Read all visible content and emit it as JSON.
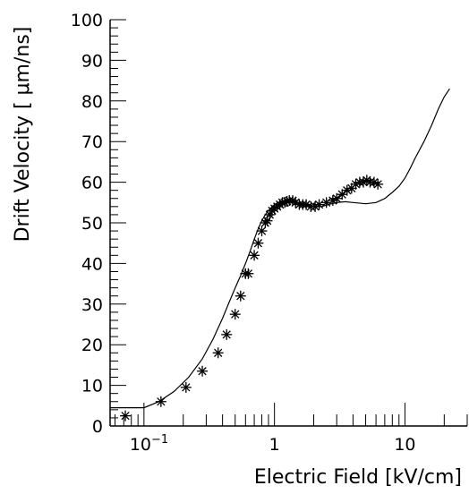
{
  "chart_data": {
    "type": "scatter",
    "title": "",
    "xlabel": "Electric Field [kV/cm]",
    "ylabel": "Drift Velocity [  μm/ns]",
    "xscale": "log",
    "xlim": [
      0.055,
      30
    ],
    "ylim": [
      0,
      100
    ],
    "x_ticks": [
      {
        "value": 0.1,
        "label": "10",
        "exp": "−1"
      },
      {
        "value": 1,
        "label": "1",
        "exp": ""
      },
      {
        "value": 10,
        "label": "10",
        "exp": ""
      }
    ],
    "y_ticks": [
      0,
      10,
      20,
      30,
      40,
      50,
      60,
      70,
      80,
      90,
      100
    ],
    "grid": false,
    "legend": "none",
    "colors": {
      "line": "#000000",
      "marker": "#000000"
    },
    "series": [
      {
        "style": "line",
        "x": [
          0.055,
          0.1,
          0.13,
          0.17,
          0.22,
          0.28,
          0.34,
          0.4,
          0.45,
          0.5,
          0.55,
          0.6,
          0.65,
          0.7,
          0.75,
          0.8,
          0.85,
          0.9,
          0.95,
          1.0,
          1.1,
          1.2,
          1.3,
          1.4,
          1.6,
          1.8,
          2.0,
          2.3,
          2.6,
          3.0,
          3.5,
          4.0,
          5.0,
          6.0,
          7.0,
          8.0,
          9.0,
          10,
          11,
          12,
          14,
          16,
          18,
          20,
          22
        ],
        "y": [
          4.5,
          4.5,
          6.0,
          8.5,
          12.0,
          16.5,
          21.5,
          26.5,
          30.5,
          34.0,
          37.0,
          40.0,
          43.0,
          46.0,
          48.5,
          50.5,
          52.0,
          53.0,
          53.8,
          54.5,
          55.2,
          55.5,
          55.5,
          55.3,
          54.7,
          54.3,
          54.0,
          54.0,
          54.5,
          55.0,
          55.2,
          55.0,
          54.7,
          55.0,
          56.0,
          57.5,
          59.0,
          61.0,
          63.5,
          66.0,
          70.0,
          74.0,
          78.0,
          81.0,
          83.0
        ]
      },
      {
        "style": "markers",
        "marker": "asterisk",
        "x": [
          0.072,
          0.135,
          0.21,
          0.28,
          0.37,
          0.43,
          0.5,
          0.55,
          0.6,
          0.63,
          0.7,
          0.75,
          0.8,
          0.85,
          0.88,
          0.92,
          0.96,
          1.0,
          1.05,
          1.1,
          1.15,
          1.2,
          1.25,
          1.3,
          1.38,
          1.45,
          1.55,
          1.65,
          1.75,
          1.9,
          2.05,
          2.2,
          2.5,
          2.8,
          3.0,
          3.3,
          3.6,
          3.9,
          4.2,
          4.5,
          4.8,
          5.1,
          5.4,
          5.8,
          6.2
        ],
        "y": [
          2.5,
          6.0,
          9.5,
          13.5,
          18.0,
          22.5,
          27.5,
          32.0,
          37.5,
          37.5,
          42.0,
          45.0,
          48.0,
          50.0,
          50.5,
          52.0,
          53.0,
          53.5,
          54.0,
          54.5,
          55.0,
          55.0,
          55.3,
          55.5,
          55.5,
          55.0,
          54.5,
          54.5,
          54.5,
          54.0,
          54.0,
          54.5,
          55.0,
          55.5,
          56.0,
          57.0,
          58.0,
          58.5,
          59.5,
          60.0,
          60.0,
          60.5,
          60.0,
          60.0,
          59.5
        ]
      }
    ]
  }
}
